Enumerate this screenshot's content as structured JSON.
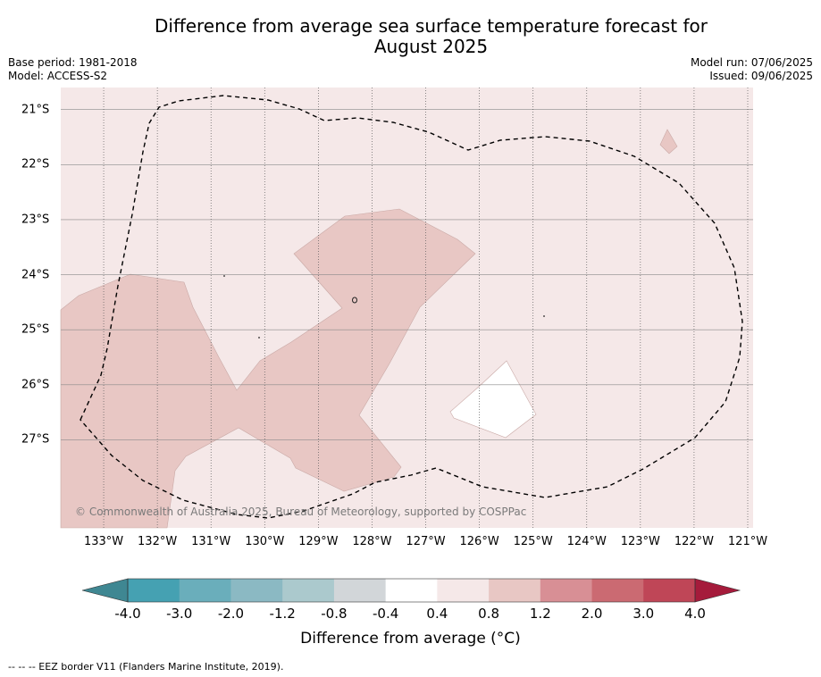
{
  "title_line1": "Difference from average sea surface temperature forecast for",
  "title_line2": "August 2025",
  "meta": {
    "base_period": "Base period: 1981-2018",
    "model": "Model: ACCESS-S2",
    "model_run": "Model run: 07/06/2025",
    "issued": "Issued: 09/06/2025"
  },
  "map": {
    "lon_range": [
      -133.8,
      -120.9
    ],
    "lat_range": [
      -28.6,
      -20.6
    ],
    "latitudes": [
      {
        "value": -21,
        "label": "21°S"
      },
      {
        "value": -22,
        "label": "22°S"
      },
      {
        "value": -23,
        "label": "23°S"
      },
      {
        "value": -24,
        "label": "24°S"
      },
      {
        "value": -25,
        "label": "25°S"
      },
      {
        "value": -26,
        "label": "26°S"
      },
      {
        "value": -27,
        "label": "27°S"
      }
    ],
    "longitudes": [
      {
        "value": -133,
        "label": "133°W"
      },
      {
        "value": -132,
        "label": "132°W"
      },
      {
        "value": -131,
        "label": "131°W"
      },
      {
        "value": -130,
        "label": "130°W"
      },
      {
        "value": -129,
        "label": "129°W"
      },
      {
        "value": -128,
        "label": "128°W"
      },
      {
        "value": -127,
        "label": "127°W"
      },
      {
        "value": -126,
        "label": "126°W"
      },
      {
        "value": -125,
        "label": "125°W"
      },
      {
        "value": -124,
        "label": "124°W"
      },
      {
        "value": -123,
        "label": "123°W"
      },
      {
        "value": -122,
        "label": "122°W"
      },
      {
        "value": -121,
        "label": "121°W"
      }
    ],
    "background_color": "#f5e8e8",
    "warm_color": "#e8c7c4",
    "neutral_color": "#ffffff",
    "copyright": "© Commonwealth of Australia 2025, Bureau of Meteorology, supported by COSPPac"
  },
  "colorbar": {
    "labels": [
      "-4.0",
      "-3.0",
      "-2.0",
      "-1.2",
      "-0.8",
      "-0.4",
      "0.4",
      "0.8",
      "1.2",
      "2.0",
      "3.0",
      "4.0"
    ],
    "colors": [
      "#45a1b2",
      "#6aaebb",
      "#8bb9c3",
      "#abc9cd",
      "#d2d6d9",
      "#ffffff",
      "#f5e8e8",
      "#e8c7c4",
      "#d88f95",
      "#cb6a72",
      "#bf4657"
    ],
    "under_color": "#3f8792",
    "over_color": "#a51b3b",
    "title": "Difference from average (°C)"
  },
  "footnote": "--  --  -- EEZ border V11 (Flanders Marine Institute, 2019)."
}
